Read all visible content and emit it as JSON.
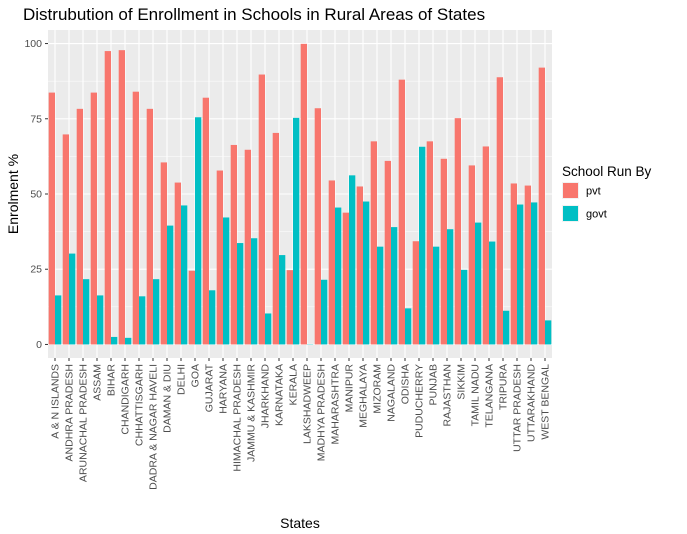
{
  "chart_data": {
    "type": "bar",
    "title": "Distrubution of Enrollment in Schools in Rural Areas of States",
    "xlabel": "States",
    "ylabel": "Enrolment %",
    "ylim": [
      -4.5,
      104.5
    ],
    "yticks": [
      0,
      25,
      50,
      75,
      100
    ],
    "grid": true,
    "legend": {
      "title": "School Run By",
      "placement": "right"
    },
    "categories": [
      "A & N ISLANDS",
      "ANDHRA PRADESH",
      "ARUNACHAL PRADESH",
      "ASSAM",
      "BIHAR",
      "CHANDIGARH",
      "CHHATTISGARH",
      "DADRA & NAGAR HAVELI",
      "DAMAN & DIU",
      "DELHI",
      "GOA",
      "GUJARAT",
      "HARYANA",
      "HIMACHAL PRADESH",
      "JAMMU & KASHMIR",
      "JHARKHAND",
      "KARNATAKA",
      "KERALA",
      "LAKSHADWEEP",
      "MADHYA PRADESH",
      "MAHARASHTRA",
      "MANIPUR",
      "MEGHALAYA",
      "MIZORAM",
      "NAGALAND",
      "ODISHA",
      "PUDUCHERRY",
      "PUNJAB",
      "RAJASTHAN",
      "SIKKIM",
      "TAMIL NADU",
      "TELANGANA",
      "TRIPURA",
      "UTTAR PRADESH",
      "UTTARAKHAND",
      "WEST BENGAL"
    ],
    "series": [
      {
        "name": "pvt",
        "color": "#f8766d",
        "values": [
          83.7,
          69.8,
          78.3,
          83.7,
          97.5,
          97.8,
          84,
          78.3,
          60.5,
          53.8,
          24.5,
          82,
          57.8,
          66.3,
          64.7,
          89.7,
          70.3,
          24.7,
          99.9,
          78.5,
          54.5,
          43.8,
          52.5,
          67.5,
          61,
          88,
          34.3,
          67.5,
          61.7,
          75.2,
          59.5,
          65.8,
          88.8,
          53.5,
          52.8,
          92
        ]
      },
      {
        "name": "govt",
        "color": "#00bfc4",
        "values": [
          16.3,
          30.2,
          21.7,
          16.3,
          2.5,
          2.2,
          16,
          21.7,
          39.5,
          46.2,
          75.5,
          18,
          42.2,
          33.7,
          35.3,
          10.3,
          29.7,
          75.3,
          0.1,
          21.5,
          45.5,
          56.2,
          47.5,
          32.5,
          39,
          12,
          65.7,
          32.5,
          38.3,
          24.8,
          40.5,
          34.2,
          11.2,
          46.5,
          47.2,
          8
        ]
      }
    ]
  }
}
